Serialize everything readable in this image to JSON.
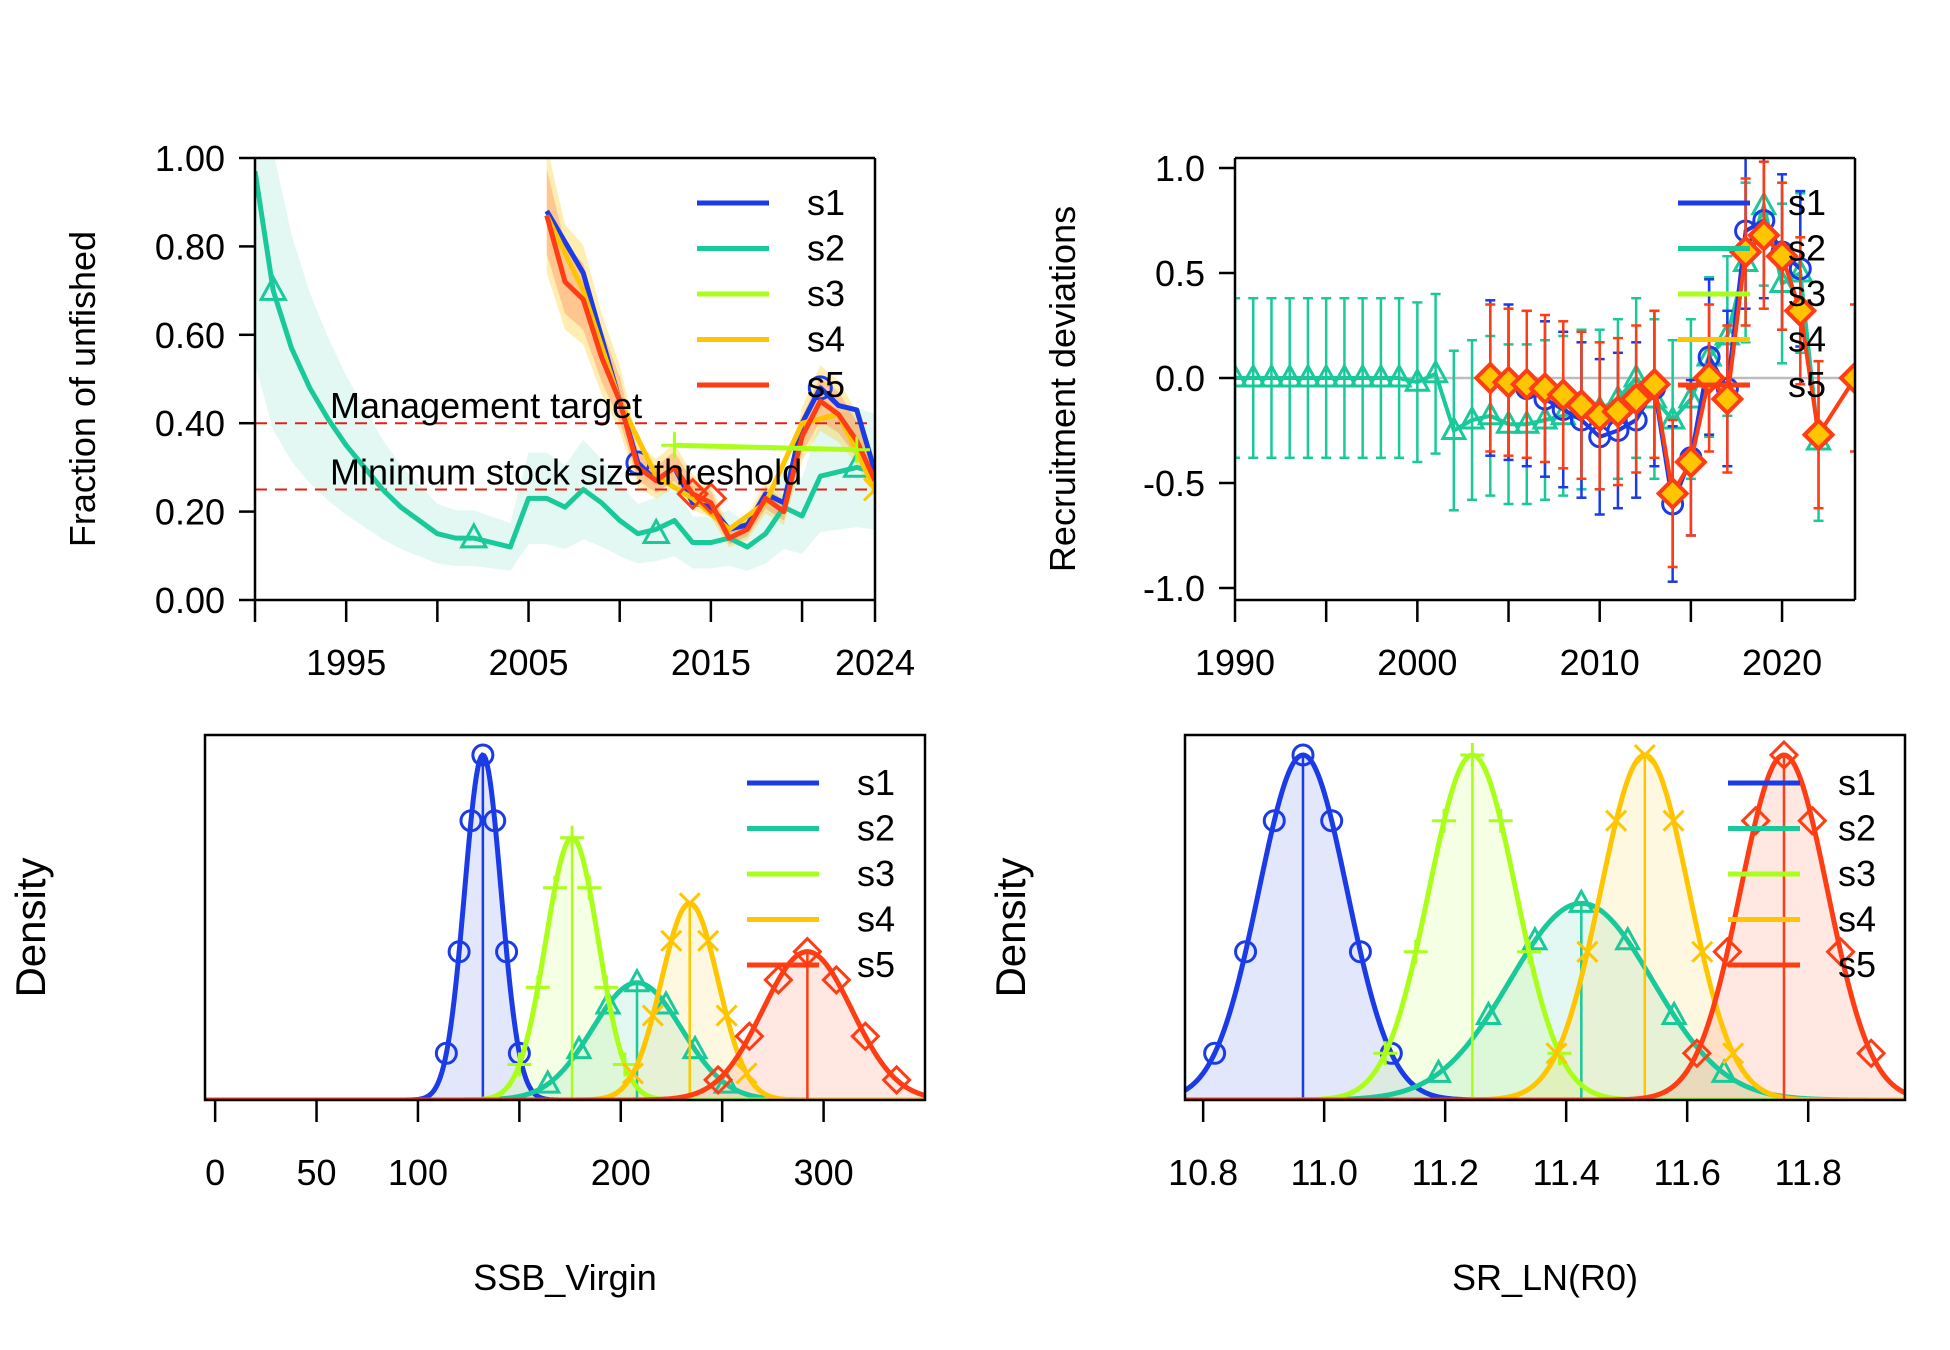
{
  "series_colors": {
    "s1": "#1a3be6",
    "s2": "#19c99a",
    "s3": "#aaff1a",
    "s4": "#ffc500",
    "s5": "#ff3d14"
  },
  "chart_data": [
    {
      "id": "fraction-unfished",
      "type": "line",
      "title": "",
      "xlabel": "",
      "ylabel": "Fraction of unfished",
      "xlim": [
        1990,
        2024
      ],
      "ylim": [
        0,
        1
      ],
      "x_ticks": [
        1990,
        1995,
        2000,
        2005,
        2010,
        2015,
        2020,
        2024
      ],
      "x_tick_labels": [
        "1995",
        "2005",
        "2015",
        "2024"
      ],
      "y_tick_labels": [
        "0.00",
        "0.20",
        "0.40",
        "0.60",
        "0.80",
        "1.00"
      ],
      "y_ticks": [
        0,
        0.2,
        0.4,
        0.6,
        0.8,
        1.0
      ],
      "reference_lines": [
        {
          "label": "Management target",
          "y": 0.4
        },
        {
          "label": "Minimum stock size threshold",
          "y": 0.25
        },
        {
          "label": "",
          "y": 1.0
        }
      ],
      "legend": [
        "s1",
        "s2",
        "s3",
        "s4",
        "s5"
      ],
      "legend_position": "top-right",
      "series": [
        {
          "name": "s1",
          "marker": "circle",
          "x": [
            2006,
            2008,
            2010,
            2011,
            2012,
            2013,
            2014,
            2015,
            2016,
            2017,
            2018,
            2019,
            2020,
            2021,
            2022,
            2023,
            2024
          ],
          "y": [
            0.88,
            0.74,
            0.45,
            0.31,
            0.27,
            0.3,
            0.22,
            0.21,
            0.16,
            0.17,
            0.24,
            0.22,
            0.4,
            0.48,
            0.44,
            0.43,
            0.29
          ],
          "markers_x": [
            2011,
            2021
          ],
          "markers_y": [
            0.31,
            0.48
          ]
        },
        {
          "name": "s2",
          "marker": "triangle",
          "x": [
            1990,
            1991,
            1992,
            1993,
            1994,
            1995,
            1996,
            1997,
            1998,
            1999,
            2000,
            2001,
            2002,
            2003,
            2004,
            2005,
            2006,
            2007,
            2008,
            2009,
            2010,
            2011,
            2012,
            2013,
            2014,
            2015,
            2016,
            2017,
            2018,
            2019,
            2020,
            2021,
            2022,
            2023,
            2024
          ],
          "y": [
            0.97,
            0.7,
            0.57,
            0.48,
            0.41,
            0.35,
            0.3,
            0.25,
            0.21,
            0.18,
            0.15,
            0.14,
            0.14,
            0.13,
            0.12,
            0.23,
            0.23,
            0.21,
            0.25,
            0.22,
            0.18,
            0.15,
            0.16,
            0.18,
            0.13,
            0.13,
            0.14,
            0.12,
            0.15,
            0.21,
            0.19,
            0.28,
            0.29,
            0.3,
            0.29
          ],
          "markers_x": [
            1991,
            2002,
            2012,
            2023
          ],
          "markers_y": [
            0.7,
            0.14,
            0.15,
            0.3
          ]
        },
        {
          "name": "s3",
          "marker": "plus",
          "x": [
            2013,
            2023
          ],
          "y": [
            0.35,
            0.34
          ],
          "markers_x": [
            2013,
            2023
          ],
          "markers_y": [
            0.35,
            0.34
          ]
        },
        {
          "name": "s4",
          "marker": "x",
          "x": [
            2006,
            2008,
            2010,
            2012,
            2014,
            2016,
            2018,
            2020,
            2022,
            2024
          ],
          "y": [
            0.87,
            0.7,
            0.45,
            0.28,
            0.23,
            0.16,
            0.22,
            0.4,
            0.42,
            0.25
          ],
          "markers_x": [
            2024
          ],
          "markers_y": [
            0.25
          ]
        },
        {
          "name": "s5",
          "marker": "diamond",
          "x": [
            2006,
            2007,
            2008,
            2009,
            2010,
            2011,
            2012,
            2013,
            2014,
            2015,
            2016,
            2017,
            2018,
            2019,
            2020,
            2021,
            2022,
            2023,
            2024
          ],
          "y": [
            0.87,
            0.72,
            0.68,
            0.55,
            0.45,
            0.3,
            0.27,
            0.3,
            0.24,
            0.22,
            0.14,
            0.16,
            0.23,
            0.2,
            0.37,
            0.45,
            0.42,
            0.36,
            0.27
          ],
          "markers_x": [
            2014,
            2015
          ],
          "markers_y": [
            0.24,
            0.23
          ]
        }
      ]
    },
    {
      "id": "recruitment-deviations",
      "type": "scatter",
      "title": "",
      "xlabel": "",
      "ylabel": "Recruitment deviations",
      "xlim": [
        1990,
        2024
      ],
      "ylim": [
        -1,
        1
      ],
      "x_ticks": [
        1990,
        1995,
        2000,
        2005,
        2010,
        2015,
        2020
      ],
      "x_tick_labels": [
        "1990",
        "2000",
        "2010",
        "2020"
      ],
      "y_tick_labels": [
        "-1.0",
        "-0.5",
        "0.0",
        "0.5",
        "1.0"
      ],
      "y_ticks": [
        -1.0,
        -0.5,
        0.0,
        0.5,
        1.0
      ],
      "legend": [
        "s1",
        "s2",
        "s3",
        "s4",
        "s5"
      ],
      "legend_position": "top-right",
      "series": [
        {
          "name": "s2",
          "marker": "triangle",
          "error": 0.38,
          "x": [
            1990,
            1991,
            1992,
            1993,
            1994,
            1995,
            1996,
            1997,
            1998,
            1999,
            2000,
            2001,
            2002,
            2003,
            2004,
            2005,
            2006,
            2007,
            2008,
            2009,
            2010,
            2011,
            2012,
            2013,
            2014,
            2015,
            2016,
            2017,
            2018,
            2019,
            2020,
            2021,
            2022
          ],
          "y": [
            0,
            0,
            0,
            0,
            0,
            0,
            0,
            0,
            0,
            0,
            -0.02,
            0.02,
            -0.25,
            -0.2,
            -0.18,
            -0.22,
            -0.22,
            -0.2,
            -0.18,
            -0.15,
            -0.15,
            -0.1,
            0.0,
            -0.1,
            -0.2,
            -0.1,
            0.1,
            0.2,
            0.55,
            0.82,
            0.45,
            0.5,
            -0.3
          ]
        },
        {
          "name": "s1",
          "marker": "circle",
          "error": 0.37,
          "x": [
            2004,
            2005,
            2006,
            2007,
            2008,
            2009,
            2010,
            2011,
            2012,
            2013,
            2014,
            2015,
            2016,
            2017,
            2018,
            2019,
            2020,
            2021
          ],
          "y": [
            0,
            -0.02,
            -0.05,
            -0.1,
            -0.15,
            -0.2,
            -0.28,
            -0.25,
            -0.2,
            -0.05,
            -0.6,
            -0.38,
            0.1,
            -0.05,
            0.7,
            0.75,
            0.6,
            0.52
          ]
        },
        {
          "name": "s5",
          "marker": "diamond",
          "error": 0.35,
          "x": [
            2004,
            2005,
            2006,
            2007,
            2008,
            2009,
            2010,
            2011,
            2012,
            2013,
            2014,
            2015,
            2016,
            2017,
            2018,
            2019,
            2020,
            2021,
            2022,
            2024
          ],
          "y": [
            0,
            -0.02,
            -0.03,
            -0.05,
            -0.08,
            -0.13,
            -0.18,
            -0.16,
            -0.1,
            -0.03,
            -0.55,
            -0.4,
            0.0,
            -0.1,
            0.6,
            0.68,
            0.58,
            0.32,
            -0.27,
            0.0
          ]
        }
      ]
    },
    {
      "id": "ssb-virgin",
      "type": "area",
      "title": "",
      "xlabel": "SSB_Virgin",
      "ylabel": "Density",
      "xlim": [
        -5,
        350
      ],
      "x_ticks": [
        0,
        50,
        100,
        150,
        200,
        250,
        300
      ],
      "x_tick_labels": [
        "0",
        "50",
        "100",
        "200",
        "300"
      ],
      "x_tick_label_values": [
        0,
        50,
        100,
        200,
        300
      ],
      "legend": [
        "s1",
        "s2",
        "s3",
        "s4",
        "s5"
      ],
      "legend_position": "top-right",
      "series": [
        {
          "name": "s1",
          "mean": 132,
          "sd": 9,
          "peak": 1.0,
          "marker": "circle"
        },
        {
          "name": "s2",
          "mean": 208,
          "sd": 22,
          "peak": 0.34,
          "marker": "triangle"
        },
        {
          "name": "s3",
          "mean": 176,
          "sd": 13,
          "peak": 0.76,
          "marker": "plus"
        },
        {
          "name": "s4",
          "mean": 234,
          "sd": 14,
          "peak": 0.57,
          "marker": "x"
        },
        {
          "name": "s5",
          "mean": 292,
          "sd": 22,
          "peak": 0.43,
          "marker": "diamond"
        }
      ]
    },
    {
      "id": "sr-ln-r0",
      "type": "area",
      "title": "",
      "xlabel": "SR_LN(R0)",
      "ylabel": "Density",
      "xlim": [
        10.77,
        11.96
      ],
      "x_ticks": [
        10.8,
        11.0,
        11.2,
        11.4,
        11.6,
        11.8
      ],
      "x_tick_labels": [
        "10.8",
        "11.0",
        "11.2",
        "11.4",
        "11.6",
        "11.8"
      ],
      "legend": [
        "s1",
        "s2",
        "s3",
        "s4",
        "s5"
      ],
      "legend_position": "top-right",
      "series": [
        {
          "name": "s1",
          "mean": 10.965,
          "sd": 0.073,
          "peak": 1.0,
          "marker": "circle"
        },
        {
          "name": "s2",
          "mean": 11.425,
          "sd": 0.118,
          "peak": 0.57,
          "marker": "triangle"
        },
        {
          "name": "s3",
          "mean": 11.245,
          "sd": 0.072,
          "peak": 1.0,
          "marker": "plus"
        },
        {
          "name": "s4",
          "mean": 11.53,
          "sd": 0.073,
          "peak": 1.0,
          "marker": "x"
        },
        {
          "name": "s5",
          "mean": 11.76,
          "sd": 0.072,
          "peak": 1.0,
          "marker": "diamond"
        }
      ]
    }
  ]
}
